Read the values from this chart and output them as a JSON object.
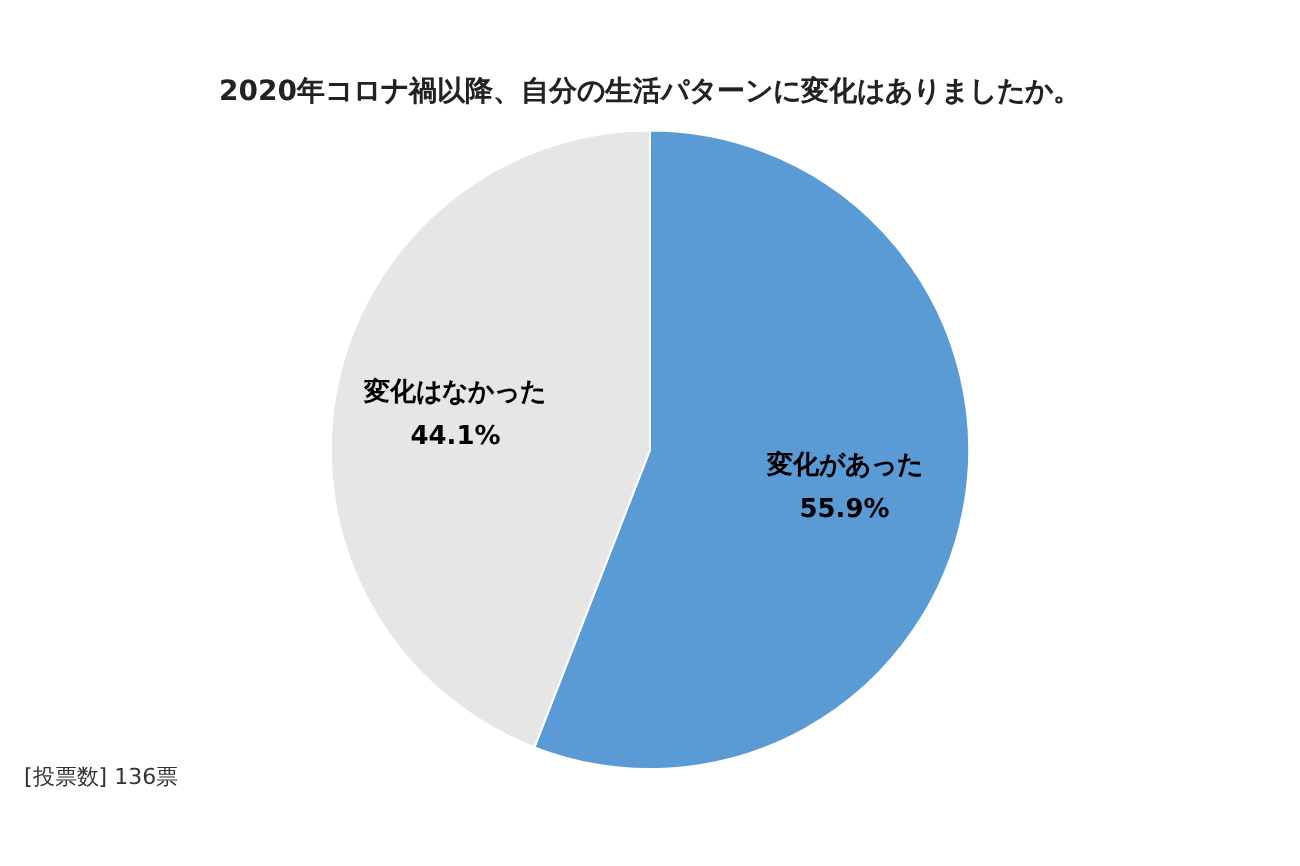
{
  "chart_data": {
    "type": "pie",
    "title": "2020年コロナ禍以降、自分の生活パターンに変化はありましたか。",
    "categories": [
      "変化があった",
      "変化はなかった"
    ],
    "values": [
      55.9,
      44.1
    ],
    "colors": [
      "#5b9bd5",
      "#e7e6e6"
    ],
    "value_labels": [
      "55.9%",
      "44.1%"
    ],
    "legend": false,
    "annotations": [
      "[投票数] 136票"
    ]
  }
}
